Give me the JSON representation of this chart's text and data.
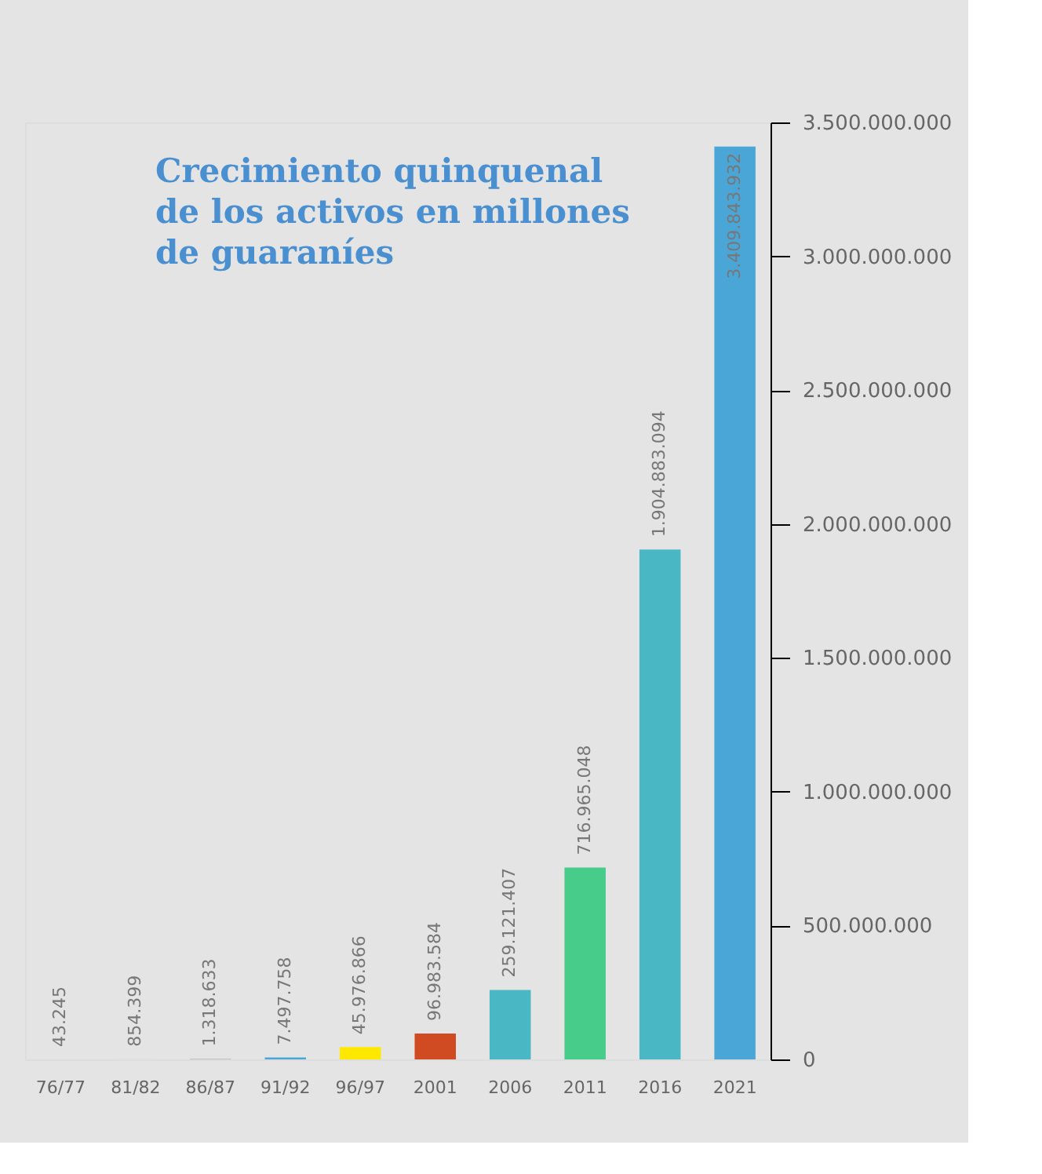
{
  "chart_data": {
    "type": "bar",
    "title": "Crecimiento quinquenal\nde los activos en millones\nde guaraníes",
    "categories": [
      "76/77",
      "81/82",
      "86/87",
      "91/92",
      "96/97",
      "2001",
      "2006",
      "2011",
      "2016",
      "2021"
    ],
    "values": [
      43245,
      854399,
      1318633,
      7497758,
      45976866,
      96983584,
      259121407,
      716965048,
      1904883094,
      3409843932
    ],
    "value_labels": [
      "43.245",
      "854.399",
      "1.318.633",
      "7.497.758",
      "45.976.866",
      "96.983.584",
      "259.121.407",
      "716.965.048",
      "1.904.883.094",
      "3.409.843.932"
    ],
    "colors": [
      "#000000",
      "#d8d8d8",
      "#999999",
      "#4ba6d8",
      "#ffe800",
      "#d04a22",
      "#4ab8c4",
      "#47cc8a",
      "#4ab8c4",
      "#4ba6d8"
    ],
    "ylim": [
      0,
      3500000000
    ],
    "yticks": [
      0,
      {
        "value": 500000000,
        "label": "500.000.000"
      },
      {
        "value": 1000000000,
        "label": "1.000.000.000"
      },
      {
        "value": 1500000000,
        "label": "1.500.000.000"
      },
      {
        "value": 2000000000,
        "label": "2.000.000.000"
      },
      {
        "value": 2500000000,
        "label": "2.500.000.000"
      },
      {
        "value": 3000000000,
        "label": "3.000.000.000"
      },
      {
        "value": 3500000000,
        "label": "3.500.000.000"
      }
    ],
    "grid": false
  }
}
